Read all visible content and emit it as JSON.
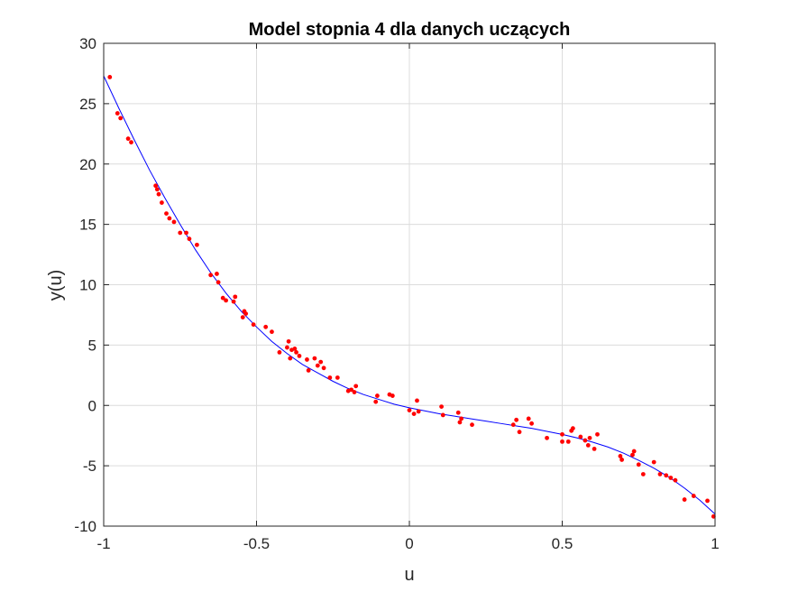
{
  "chart_data": {
    "type": "scatter",
    "title": "Model stopnia 4 dla danych uczących",
    "xlabel": "u",
    "ylabel": "y(u)",
    "xlim": [
      -1,
      1
    ],
    "ylim": [
      -10,
      30
    ],
    "xticks": [
      -1,
      -0.5,
      0,
      0.5,
      1
    ],
    "xtick_labels": [
      "-1",
      "-0.5",
      "0",
      "0.5",
      "1"
    ],
    "yticks": [
      -10,
      -5,
      0,
      5,
      10,
      15,
      20,
      25,
      30
    ],
    "ytick_labels": [
      "-10",
      "-5",
      "0",
      "5",
      "10",
      "15",
      "20",
      "25",
      "30"
    ],
    "grid": true,
    "colors": {
      "data": "#ff0000",
      "model": "#0000ff",
      "grid": "#dcdcdc",
      "axis": "#262626"
    },
    "series": [
      {
        "kind": "scatter",
        "points": [
          [
            -0.98,
            27.2
          ],
          [
            -0.955,
            24.2
          ],
          [
            -0.945,
            23.8
          ],
          [
            -0.92,
            22.1
          ],
          [
            -0.91,
            21.8
          ],
          [
            -0.83,
            18.2
          ],
          [
            -0.825,
            17.9
          ],
          [
            -0.82,
            17.5
          ],
          [
            -0.81,
            16.8
          ],
          [
            -0.795,
            15.9
          ],
          [
            -0.785,
            15.5
          ],
          [
            -0.77,
            15.2
          ],
          [
            -0.75,
            14.3
          ],
          [
            -0.73,
            14.3
          ],
          [
            -0.72,
            13.8
          ],
          [
            -0.695,
            13.3
          ],
          [
            -0.65,
            10.8
          ],
          [
            -0.63,
            10.9
          ],
          [
            -0.625,
            10.2
          ],
          [
            -0.61,
            8.9
          ],
          [
            -0.6,
            8.7
          ],
          [
            -0.57,
            9.0
          ],
          [
            -0.575,
            8.6
          ],
          [
            -0.545,
            7.3
          ],
          [
            -0.54,
            7.8
          ],
          [
            -0.535,
            7.6
          ],
          [
            -0.51,
            6.7
          ],
          [
            -0.47,
            6.5
          ],
          [
            -0.45,
            6.1
          ],
          [
            -0.425,
            4.4
          ],
          [
            -0.4,
            4.8
          ],
          [
            -0.395,
            5.3
          ],
          [
            -0.39,
            3.9
          ],
          [
            -0.385,
            4.6
          ],
          [
            -0.375,
            4.7
          ],
          [
            -0.37,
            4.4
          ],
          [
            -0.36,
            4.1
          ],
          [
            -0.335,
            3.8
          ],
          [
            -0.33,
            2.9
          ],
          [
            -0.31,
            3.9
          ],
          [
            -0.3,
            3.3
          ],
          [
            -0.29,
            3.6
          ],
          [
            -0.28,
            3.1
          ],
          [
            -0.26,
            2.3
          ],
          [
            -0.235,
            2.3
          ],
          [
            -0.2,
            1.2
          ],
          [
            -0.19,
            1.3
          ],
          [
            -0.18,
            1.1
          ],
          [
            -0.175,
            1.6
          ],
          [
            -0.11,
            0.3
          ],
          [
            -0.105,
            0.8
          ],
          [
            -0.065,
            0.9
          ],
          [
            -0.055,
            0.8
          ],
          [
            0.0,
            -0.4
          ],
          [
            0.015,
            -0.7
          ],
          [
            0.025,
            0.4
          ],
          [
            0.03,
            -0.5
          ],
          [
            0.105,
            -0.1
          ],
          [
            0.11,
            -0.8
          ],
          [
            0.16,
            -0.6
          ],
          [
            0.165,
            -1.4
          ],
          [
            0.17,
            -1.1
          ],
          [
            0.205,
            -1.6
          ],
          [
            0.34,
            -1.6
          ],
          [
            0.35,
            -1.2
          ],
          [
            0.36,
            -2.2
          ],
          [
            0.39,
            -1.1
          ],
          [
            0.4,
            -1.5
          ],
          [
            0.45,
            -2.7
          ],
          [
            0.5,
            -2.4
          ],
          [
            0.5,
            -3.0
          ],
          [
            0.52,
            -3.0
          ],
          [
            0.53,
            -2.1
          ],
          [
            0.535,
            -1.9
          ],
          [
            0.56,
            -2.6
          ],
          [
            0.575,
            -2.9
          ],
          [
            0.585,
            -3.3
          ],
          [
            0.59,
            -2.7
          ],
          [
            0.605,
            -3.6
          ],
          [
            0.615,
            -2.4
          ],
          [
            0.69,
            -4.2
          ],
          [
            0.695,
            -4.5
          ],
          [
            0.73,
            -4.1
          ],
          [
            0.735,
            -3.8
          ],
          [
            0.75,
            -4.9
          ],
          [
            0.765,
            -5.7
          ],
          [
            0.8,
            -4.7
          ],
          [
            0.82,
            -5.7
          ],
          [
            0.84,
            -5.8
          ],
          [
            0.855,
            -6.0
          ],
          [
            0.87,
            -6.2
          ],
          [
            0.9,
            -7.8
          ],
          [
            0.93,
            -7.5
          ],
          [
            0.975,
            -7.9
          ],
          [
            0.995,
            -9.2
          ]
        ]
      },
      {
        "kind": "line",
        "points": [
          [
            -1.0,
            27.3
          ],
          [
            -0.95,
            24.6
          ],
          [
            -0.9,
            22.0
          ],
          [
            -0.85,
            19.5
          ],
          [
            -0.8,
            17.2
          ],
          [
            -0.75,
            15.0
          ],
          [
            -0.7,
            12.9
          ],
          [
            -0.65,
            11.0
          ],
          [
            -0.6,
            9.3
          ],
          [
            -0.55,
            7.8
          ],
          [
            -0.5,
            6.5
          ],
          [
            -0.45,
            5.3
          ],
          [
            -0.4,
            4.3
          ],
          [
            -0.35,
            3.4
          ],
          [
            -0.3,
            2.7
          ],
          [
            -0.25,
            2.0
          ],
          [
            -0.2,
            1.4
          ],
          [
            -0.15,
            0.9
          ],
          [
            -0.1,
            0.5
          ],
          [
            -0.05,
            0.1
          ],
          [
            0.0,
            -0.2
          ],
          [
            0.05,
            -0.45
          ],
          [
            0.1,
            -0.7
          ],
          [
            0.15,
            -0.9
          ],
          [
            0.2,
            -1.1
          ],
          [
            0.25,
            -1.3
          ],
          [
            0.3,
            -1.5
          ],
          [
            0.35,
            -1.7
          ],
          [
            0.4,
            -1.9
          ],
          [
            0.45,
            -2.15
          ],
          [
            0.5,
            -2.4
          ],
          [
            0.55,
            -2.7
          ],
          [
            0.6,
            -3.05
          ],
          [
            0.65,
            -3.45
          ],
          [
            0.7,
            -3.95
          ],
          [
            0.75,
            -4.55
          ],
          [
            0.8,
            -5.2
          ],
          [
            0.85,
            -5.95
          ],
          [
            0.9,
            -6.85
          ],
          [
            0.95,
            -7.85
          ],
          [
            1.0,
            -9.0
          ]
        ]
      }
    ]
  }
}
